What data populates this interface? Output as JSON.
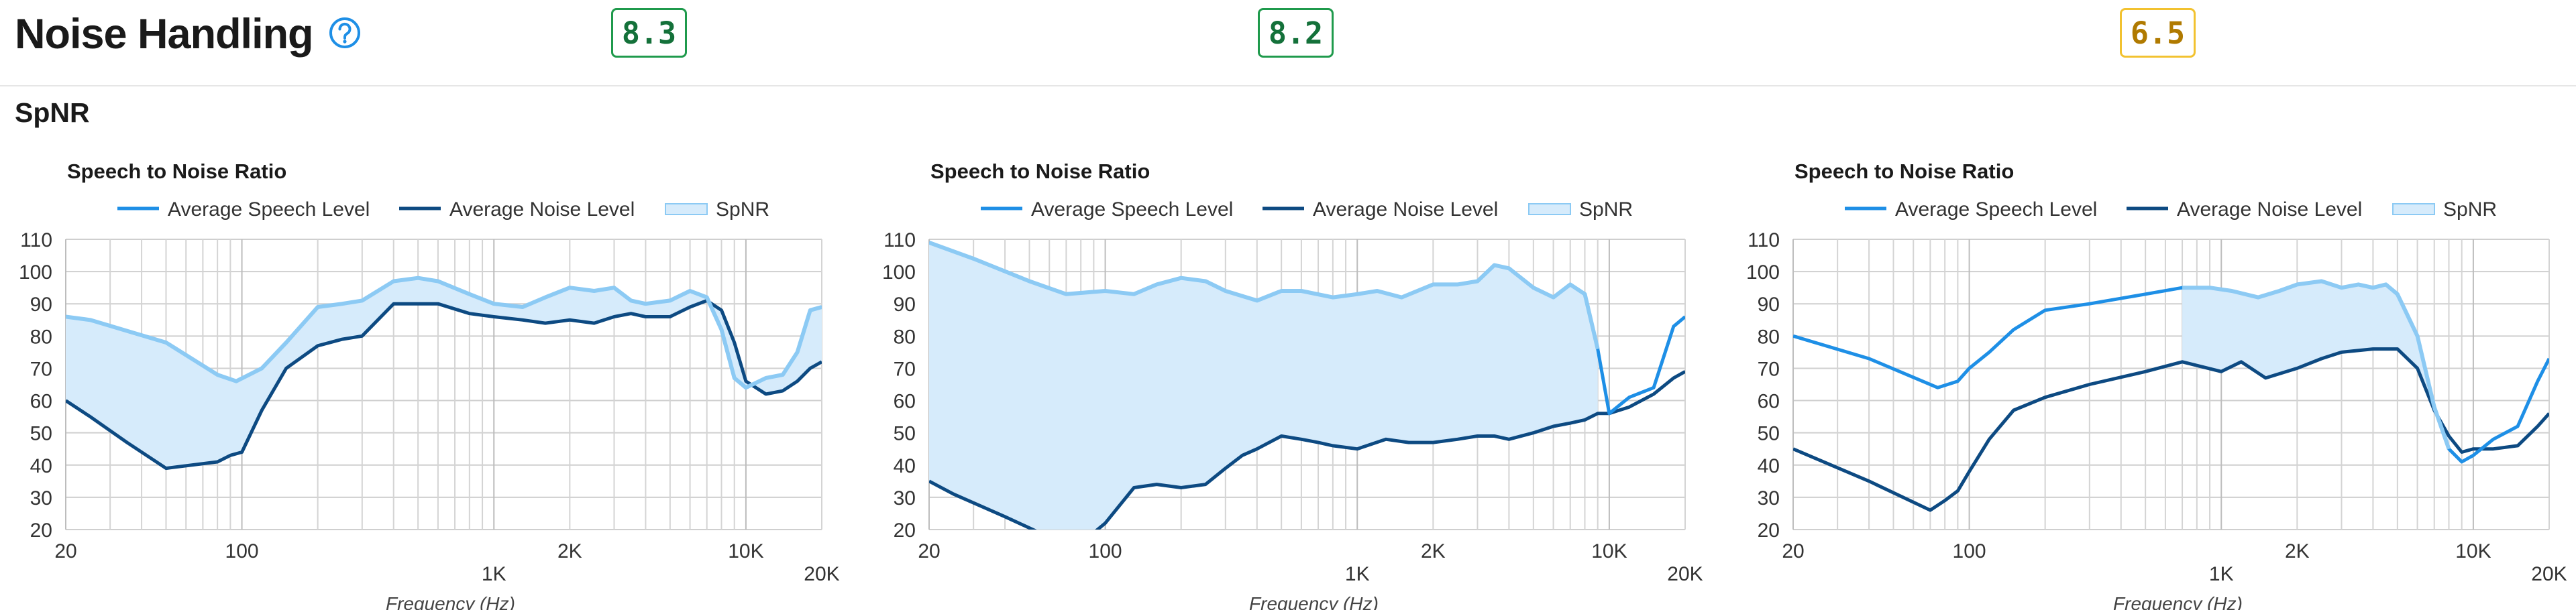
{
  "header": {
    "title": "Noise Handling",
    "help_icon": "question-circle-icon",
    "scores": [
      {
        "value": "8.3",
        "status": "good"
      },
      {
        "value": "8.2",
        "status": "good"
      },
      {
        "value": "6.5",
        "status": "ok"
      }
    ]
  },
  "section": {
    "title": "SpNR"
  },
  "colors": {
    "speech": "#1e8fe6",
    "noise": "#0d4a82",
    "spnr_fill": "#d6ebfb",
    "spnr_line": "#8ccaf4"
  },
  "chart_data": [
    {
      "type": "line",
      "title": "Speech to Noise Ratio",
      "xlabel": "Frequency (Hz)",
      "ylabel": "",
      "xscale": "log",
      "xlim": [
        20,
        20000
      ],
      "ylim": [
        20,
        110
      ],
      "grid": true,
      "legend": "top",
      "xtick_labels": [
        {
          "v": 20,
          "t": "20",
          "row": 1
        },
        {
          "v": 100,
          "t": "100",
          "row": 1
        },
        {
          "v": 1000,
          "t": "1K",
          "row": 2
        },
        {
          "v": 2000,
          "t": "2K",
          "row": 1
        },
        {
          "v": 10000,
          "t": "10K",
          "row": 1
        },
        {
          "v": 20000,
          "t": "20K",
          "row": 2
        }
      ],
      "yticks": [
        "20",
        "30",
        "40",
        "50",
        "60",
        "70",
        "80",
        "90",
        "100",
        "110"
      ],
      "legend_labels": [
        "Average Speech Level",
        "Average Noise Level",
        "SpNR"
      ],
      "spnr_range": [
        20,
        20000
      ],
      "series": [
        {
          "name": "Average Speech Level",
          "x": [
            20,
            25,
            50,
            80,
            95,
            120,
            150,
            200,
            250,
            300,
            400,
            500,
            600,
            800,
            1000,
            1300,
            1600,
            2000,
            2500,
            3000,
            3500,
            4000,
            5000,
            6000,
            7000,
            8000,
            9000,
            10000,
            12000,
            14000,
            16000,
            18000,
            20000
          ],
          "y": [
            86,
            85,
            78,
            68,
            66,
            70,
            78,
            89,
            90,
            91,
            97,
            98,
            97,
            93,
            90,
            89,
            92,
            95,
            94,
            95,
            91,
            90,
            91,
            94,
            92,
            82,
            67,
            64,
            67,
            68,
            75,
            88,
            89
          ]
        },
        {
          "name": "Average Noise Level",
          "x": [
            20,
            25,
            35,
            50,
            80,
            90,
            100,
            120,
            150,
            200,
            250,
            300,
            400,
            500,
            600,
            800,
            1000,
            1300,
            1600,
            2000,
            2500,
            3000,
            3500,
            4000,
            5000,
            6000,
            7000,
            8000,
            9000,
            10000,
            12000,
            14000,
            16000,
            18000,
            20000
          ],
          "y": [
            60,
            55,
            47,
            39,
            41,
            43,
            44,
            57,
            70,
            77,
            79,
            80,
            90,
            90,
            90,
            87,
            86,
            85,
            84,
            85,
            84,
            86,
            87,
            86,
            86,
            89,
            91,
            88,
            78,
            66,
            62,
            63,
            66,
            70,
            72
          ]
        }
      ]
    },
    {
      "type": "line",
      "title": "Speech to Noise Ratio",
      "xlabel": "Frequency (Hz)",
      "ylabel": "",
      "xscale": "log",
      "xlim": [
        20,
        20000
      ],
      "ylim": [
        20,
        110
      ],
      "grid": true,
      "legend": "top",
      "xtick_labels": [
        {
          "v": 20,
          "t": "20",
          "row": 1
        },
        {
          "v": 100,
          "t": "100",
          "row": 1
        },
        {
          "v": 1000,
          "t": "1K",
          "row": 2
        },
        {
          "v": 2000,
          "t": "2K",
          "row": 1
        },
        {
          "v": 10000,
          "t": "10K",
          "row": 1
        },
        {
          "v": 20000,
          "t": "20K",
          "row": 2
        }
      ],
      "yticks": [
        "20",
        "30",
        "40",
        "50",
        "60",
        "70",
        "80",
        "90",
        "100",
        "110"
      ],
      "legend_labels": [
        "Average Speech Level",
        "Average Noise Level",
        "SpNR"
      ],
      "spnr_range": [
        20,
        9000
      ],
      "series": [
        {
          "name": "Average Speech Level",
          "x": [
            20,
            30,
            50,
            70,
            100,
            130,
            160,
            200,
            250,
            300,
            400,
            500,
            600,
            800,
            1000,
            1200,
            1500,
            2000,
            2500,
            3000,
            3500,
            4000,
            5000,
            6000,
            7000,
            8000,
            9000,
            10000,
            12000,
            15000,
            18000,
            20000
          ],
          "y": [
            109,
            104,
            97,
            93,
            94,
            93,
            96,
            98,
            97,
            94,
            91,
            94,
            94,
            92,
            93,
            94,
            92,
            96,
            96,
            97,
            102,
            101,
            95,
            92,
            96,
            93,
            76,
            56,
            61,
            64,
            83,
            86
          ]
        },
        {
          "name": "Average Noise Level",
          "x": [
            20,
            25,
            40,
            55,
            70,
            90,
            100,
            130,
            160,
            200,
            250,
            300,
            350,
            400,
            500,
            600,
            700,
            800,
            1000,
            1300,
            1600,
            2000,
            2500,
            3000,
            3500,
            4000,
            5000,
            6000,
            7000,
            8000,
            9000,
            10000,
            12000,
            15000,
            18000,
            20000
          ],
          "y": [
            35,
            31,
            24,
            19,
            18,
            19,
            22,
            33,
            34,
            33,
            34,
            39,
            43,
            45,
            49,
            48,
            47,
            46,
            45,
            48,
            47,
            47,
            48,
            49,
            49,
            48,
            50,
            52,
            53,
            54,
            56,
            56,
            58,
            62,
            67,
            69
          ]
        }
      ]
    },
    {
      "type": "line",
      "title": "Speech to Noise Ratio",
      "xlabel": "Frequency (Hz)",
      "ylabel": "",
      "xscale": "log",
      "xlim": [
        20,
        20000
      ],
      "ylim": [
        20,
        110
      ],
      "grid": true,
      "legend": "top",
      "xtick_labels": [
        {
          "v": 20,
          "t": "20",
          "row": 1
        },
        {
          "v": 100,
          "t": "100",
          "row": 1
        },
        {
          "v": 1000,
          "t": "1K",
          "row": 2
        },
        {
          "v": 2000,
          "t": "2K",
          "row": 1
        },
        {
          "v": 10000,
          "t": "10K",
          "row": 1
        },
        {
          "v": 20000,
          "t": "20K",
          "row": 2
        }
      ],
      "yticks": [
        "20",
        "30",
        "40",
        "50",
        "60",
        "70",
        "80",
        "90",
        "100",
        "110"
      ],
      "legend_labels": [
        "Average Speech Level",
        "Average Noise Level",
        "SpNR"
      ],
      "spnr_range": [
        700,
        8000
      ],
      "series": [
        {
          "name": "Average Speech Level",
          "x": [
            20,
            40,
            75,
            90,
            100,
            120,
            150,
            200,
            300,
            500,
            700,
            900,
            1100,
            1400,
            1700,
            2000,
            2500,
            3000,
            3500,
            4000,
            4500,
            5000,
            6000,
            7000,
            8000,
            9000,
            10000,
            12000,
            15000,
            18000,
            20000
          ],
          "y": [
            80,
            73,
            64,
            66,
            70,
            75,
            82,
            88,
            90,
            93,
            95,
            95,
            94,
            92,
            94,
            96,
            97,
            95,
            96,
            95,
            96,
            93,
            80,
            58,
            45,
            41,
            43,
            48,
            52,
            66,
            73
          ]
        },
        {
          "name": "Average Noise Level",
          "x": [
            20,
            40,
            70,
            80,
            90,
            100,
            120,
            150,
            200,
            300,
            500,
            700,
            1000,
            1200,
            1500,
            2000,
            2500,
            3000,
            4000,
            5000,
            6000,
            7000,
            8000,
            9000,
            10000,
            12000,
            15000,
            18000,
            20000
          ],
          "y": [
            45,
            35,
            26,
            29,
            32,
            38,
            48,
            57,
            61,
            65,
            69,
            72,
            69,
            72,
            67,
            70,
            73,
            75,
            76,
            76,
            70,
            57,
            49,
            44,
            45,
            45,
            46,
            52,
            56
          ]
        }
      ]
    }
  ]
}
